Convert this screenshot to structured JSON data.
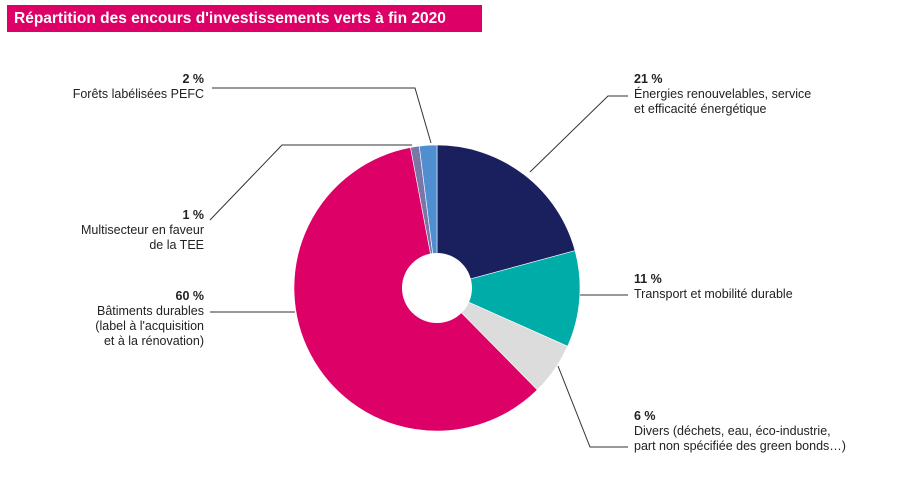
{
  "chart_data": {
    "type": "pie",
    "donut": true,
    "title": "Répartition des encours d'investissements verts à fin 2020",
    "slices": [
      {
        "label": "Énergies renouvelables, service et efficacité énergétique",
        "lines": [
          "Énergies renouvelables, service",
          "et efficacité énergétique"
        ],
        "value": 21,
        "pct": "21 %",
        "color": "#1a1f5e"
      },
      {
        "label": "Transport et mobilité durable",
        "lines": [
          "Transport et mobilité durable"
        ],
        "value": 11,
        "pct": "11 %",
        "color": "#00aca8"
      },
      {
        "label": "Divers (déchets, eau, éco-industrie, part non spécifiée des green bonds…)",
        "lines": [
          "Divers (déchets, eau, éco-industrie,",
          "part non spécifiée des green bonds…)"
        ],
        "value": 6,
        "pct": "6 %",
        "color": "#dcdcdc"
      },
      {
        "label": "Bâtiments durables (label à l'acquisition et à la rénovation)",
        "lines": [
          "Bâtiments durables",
          "(label à l'acquisition",
          "et à la rénovation)"
        ],
        "value": 60,
        "pct": "60 %",
        "color": "#dc0067"
      },
      {
        "label": "Multisecteur en faveur de la TEE",
        "lines": [
          "Multisecteur en faveur",
          "de la TEE"
        ],
        "value": 1,
        "pct": "1 %",
        "color": "#7a76a8"
      },
      {
        "label": "Forêts labélisées PEFC",
        "lines": [
          "Forêts labélisées PEFC"
        ],
        "value": 2,
        "pct": "2 %",
        "color": "#4f8fd0"
      }
    ]
  }
}
